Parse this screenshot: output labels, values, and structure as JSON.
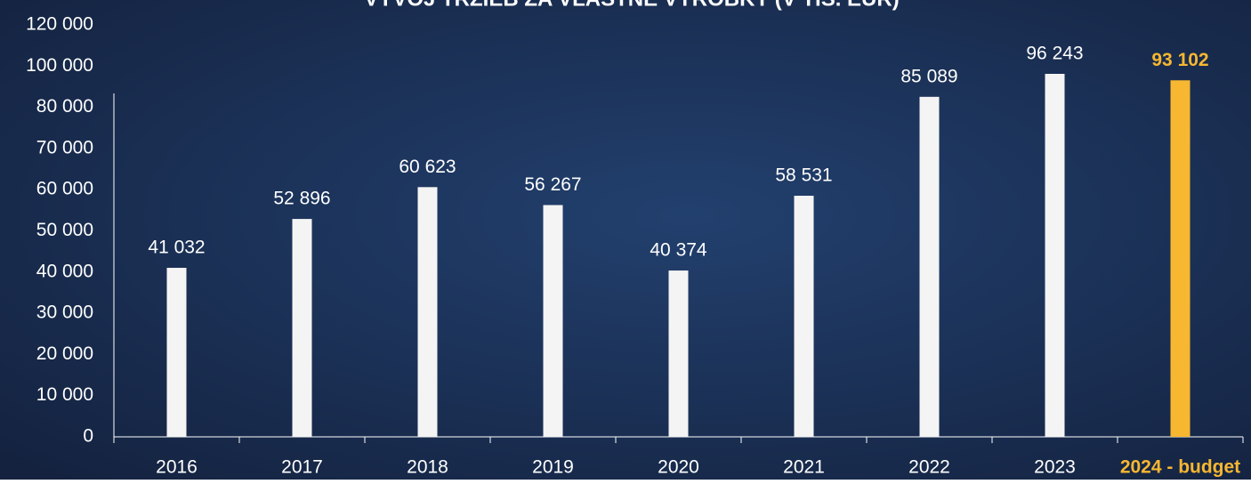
{
  "chart_data": {
    "type": "bar",
    "title": "VÝVOJ TRŽIEB ZA VLASTNÉ VÝROBKY (V TIS. EUR)",
    "categories": [
      "2016",
      "2017",
      "2018",
      "2019",
      "2020",
      "2021",
      "2022",
      "2023",
      "2024 - budget"
    ],
    "values": [
      41032,
      52896,
      60623,
      56267,
      40374,
      58531,
      85089,
      96243,
      93102
    ],
    "value_labels": [
      "41 032",
      "52 896",
      "60 623",
      "56 267",
      "40 374",
      "58 531",
      "85 089",
      "96 243",
      "93 102"
    ],
    "colors": [
      "#f4f4f4",
      "#f4f4f4",
      "#f4f4f4",
      "#f4f4f4",
      "#f4f4f4",
      "#f4f4f4",
      "#f4f4f4",
      "#f4f4f4",
      "#f7b731"
    ],
    "ylim": [
      0,
      120000
    ],
    "yticks": [
      0,
      {
        "value": 10000,
        "label": "10 000"
      },
      {
        "value": 20000,
        "label": "20 000"
      },
      {
        "value": 30000,
        "label": "30 000"
      },
      {
        "value": 40000,
        "label": "40 000"
      },
      {
        "value": 50000,
        "label": "50 000"
      },
      {
        "value": 60000,
        "label": "60 000"
      },
      {
        "value": 70000,
        "label": "70 000"
      },
      {
        "value": 80000,
        "label": "80 000"
      },
      {
        "value": 100000,
        "label": "100 000"
      },
      {
        "value": 120000,
        "label": "120 000"
      }
    ],
    "grid": false
  }
}
